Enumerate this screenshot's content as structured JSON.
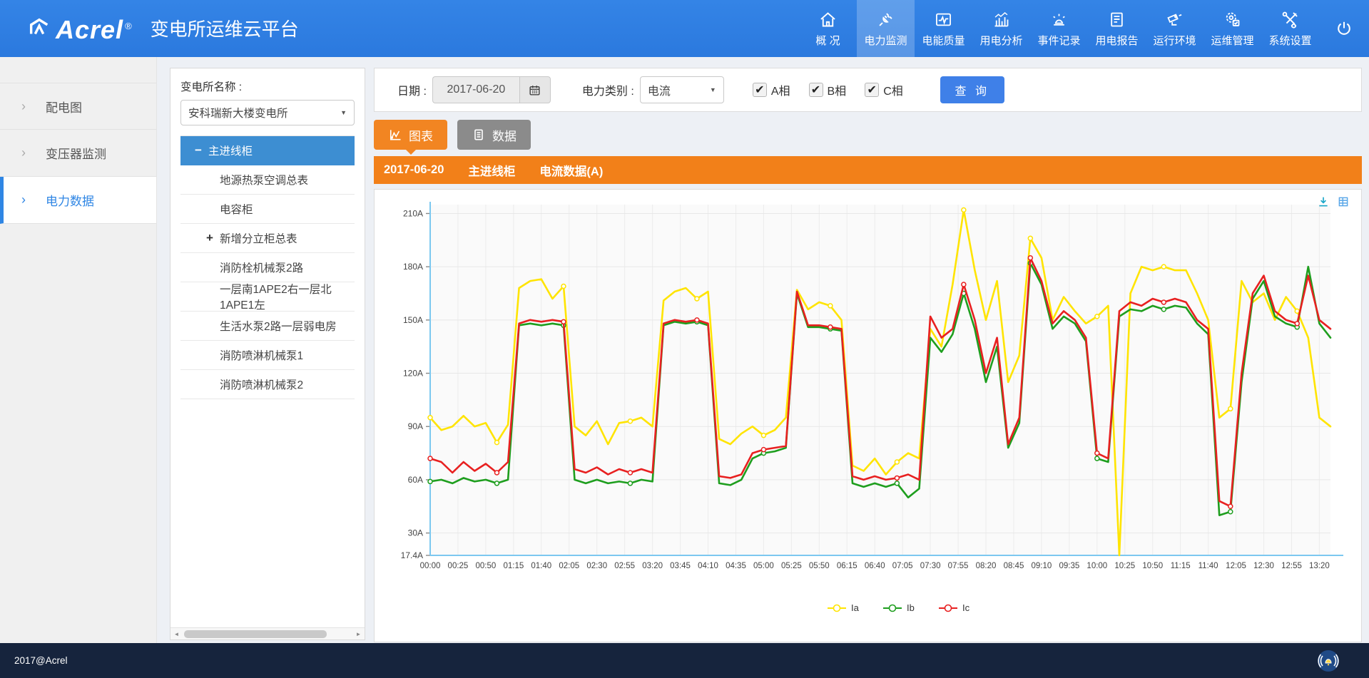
{
  "header": {
    "logo": "Acrel",
    "reg": "®",
    "title": "变电所运维云平台",
    "nav": [
      {
        "label": "概 况",
        "icon": "home-icon",
        "active": false
      },
      {
        "label": "电力监测",
        "icon": "plug-icon",
        "active": true
      },
      {
        "label": "电能质量",
        "icon": "pulse-icon",
        "active": false
      },
      {
        "label": "用电分析",
        "icon": "analysis-icon",
        "active": false
      },
      {
        "label": "事件记录",
        "icon": "alarm-icon",
        "active": false
      },
      {
        "label": "用电报告",
        "icon": "report-icon",
        "active": false
      },
      {
        "label": "运行环境",
        "icon": "camera-icon",
        "active": false
      },
      {
        "label": "运维管理",
        "icon": "gear-check-icon",
        "active": false
      },
      {
        "label": "系统设置",
        "icon": "tools-icon",
        "active": false
      }
    ]
  },
  "sidebar": {
    "items": [
      {
        "label": "配电图",
        "active": false
      },
      {
        "label": "变压器监测",
        "active": false
      },
      {
        "label": "电力数据",
        "active": true
      }
    ]
  },
  "station_panel": {
    "label": "变电所名称 :",
    "selected_station": "安科瑞新大楼变电所",
    "tree": [
      {
        "label": "主进线柜",
        "expander": "minus",
        "active": true
      },
      {
        "label": "地源热泵空调总表",
        "expander": "",
        "active": false
      },
      {
        "label": "电容柜",
        "expander": "",
        "active": false
      },
      {
        "label": "新增分立柜总表",
        "expander": "plus",
        "active": false
      },
      {
        "label": "消防栓机械泵2路",
        "expander": "",
        "active": false
      },
      {
        "label": "一层南1APE2右一层北1APE1左",
        "expander": "",
        "active": false
      },
      {
        "label": "生活水泵2路一层弱电房",
        "expander": "",
        "active": false
      },
      {
        "label": "消防喷淋机械泵1",
        "expander": "",
        "active": false
      },
      {
        "label": "消防喷淋机械泵2",
        "expander": "",
        "active": false
      }
    ]
  },
  "filter": {
    "date_label": "日期 :",
    "date_value": "2017-06-20",
    "category_label": "电力类别 :",
    "category_value": "电流",
    "phases": [
      {
        "label": "A相",
        "checked": true
      },
      {
        "label": "B相",
        "checked": true
      },
      {
        "label": "C相",
        "checked": true
      }
    ],
    "query_button": "查 询"
  },
  "tabs": [
    {
      "label": "图表",
      "icon": "line-chart-icon",
      "active": true
    },
    {
      "label": "数据",
      "icon": "data-list-icon",
      "active": false
    }
  ],
  "chart_header": {
    "date": "2017-06-20",
    "device": "主进线柜",
    "metric": "电流数据(A)"
  },
  "footer": {
    "copyright": "2017@Acrel"
  },
  "colors": {
    "navbar_blue": "#2f7de1",
    "tree_active_blue": "#3d8ed2",
    "accent_blue": "#3f80e8",
    "tab_orange": "#f28522",
    "header_orange": "#f28019",
    "tab_gray": "#8b8b8b",
    "footer_navy": "#16243d",
    "axis_blue": "#7cc8f0",
    "series_ia_yellow": "#ffe400",
    "series_ib_green": "#1e9e1e",
    "series_ic_red": "#e82020"
  },
  "chart_data": {
    "type": "line",
    "title": "2017-06-20 主进线柜 电流数据(A)",
    "unit": "A",
    "grid": true,
    "legend_position": "bottom",
    "ylim": [
      17.4,
      215
    ],
    "yticks": [
      17.4,
      30,
      60,
      90,
      120,
      150,
      180,
      210
    ],
    "x_tick_step_minutes": 25,
    "x_tick_labels": [
      "00:00",
      "00:25",
      "00:50",
      "01:15",
      "01:40",
      "02:05",
      "02:30",
      "02:55",
      "03:20",
      "03:45",
      "04:10",
      "04:35",
      "05:00",
      "05:25",
      "05:50",
      "06:15",
      "06:40",
      "07:05",
      "07:30",
      "07:55",
      "08:20",
      "08:45",
      "09:10",
      "09:35",
      "10:00",
      "10:25",
      "10:50",
      "11:15",
      "11:40",
      "12:05",
      "12:30",
      "12:55",
      "13:20"
    ],
    "x": [
      0,
      10,
      20,
      30,
      40,
      50,
      60,
      70,
      80,
      90,
      100,
      110,
      120,
      130,
      140,
      150,
      160,
      170,
      180,
      190,
      200,
      210,
      220,
      230,
      240,
      250,
      260,
      270,
      280,
      290,
      300,
      310,
      320,
      330,
      340,
      350,
      360,
      370,
      380,
      390,
      400,
      410,
      420,
      430,
      440,
      450,
      460,
      470,
      480,
      490,
      500,
      510,
      520,
      530,
      540,
      550,
      560,
      570,
      580,
      590,
      600,
      610,
      620,
      630,
      640,
      650,
      660,
      670,
      680,
      690,
      700,
      710,
      720,
      730,
      740,
      750,
      760,
      770,
      780,
      790,
      800,
      810
    ],
    "series": [
      {
        "name": "Ia",
        "color": "#ffe400",
        "values": [
          95,
          88,
          90,
          96,
          90,
          92,
          81,
          91,
          168,
          172,
          173,
          162,
          169,
          90,
          85,
          93,
          80,
          92,
          93,
          95,
          90,
          161,
          166,
          168,
          162,
          166,
          83,
          80,
          86,
          90,
          85,
          88,
          95,
          167,
          156,
          160,
          158,
          150,
          68,
          65,
          72,
          63,
          70,
          75,
          72,
          145,
          135,
          170,
          212,
          178,
          150,
          172,
          115,
          130,
          196,
          185,
          150,
          163,
          155,
          148,
          152,
          158,
          17.4,
          165,
          180,
          178,
          180,
          178,
          178,
          165,
          150,
          95,
          100,
          172,
          160,
          165,
          150,
          163,
          155,
          140,
          95,
          90
        ]
      },
      {
        "name": "Ib",
        "color": "#1e9e1e",
        "values": [
          59,
          60,
          58,
          61,
          59,
          60,
          58,
          60,
          147,
          148,
          147,
          148,
          147,
          60,
          58,
          60,
          58,
          59,
          58,
          60,
          59,
          147,
          149,
          148,
          149,
          147,
          58,
          57,
          60,
          72,
          75,
          76,
          78,
          165,
          146,
          146,
          145,
          144,
          58,
          56,
          58,
          56,
          58,
          50,
          55,
          140,
          132,
          142,
          165,
          145,
          115,
          135,
          78,
          92,
          182,
          170,
          145,
          152,
          148,
          138,
          72,
          70,
          152,
          156,
          155,
          158,
          156,
          158,
          157,
          148,
          142,
          40,
          42,
          115,
          162,
          172,
          152,
          148,
          146,
          180,
          148,
          140
        ]
      },
      {
        "name": "Ic",
        "color": "#e82020",
        "values": [
          72,
          70,
          64,
          70,
          65,
          69,
          64,
          70,
          148,
          150,
          149,
          150,
          149,
          66,
          64,
          67,
          63,
          66,
          64,
          66,
          64,
          148,
          150,
          149,
          150,
          148,
          62,
          61,
          63,
          75,
          77,
          78,
          79,
          166,
          147,
          147,
          146,
          145,
          62,
          60,
          62,
          60,
          61,
          63,
          60,
          152,
          140,
          145,
          170,
          150,
          120,
          140,
          80,
          95,
          185,
          172,
          148,
          155,
          150,
          140,
          75,
          72,
          155,
          160,
          158,
          162,
          160,
          162,
          160,
          150,
          145,
          48,
          45,
          120,
          165,
          175,
          155,
          150,
          148,
          175,
          150,
          145
        ]
      }
    ]
  }
}
